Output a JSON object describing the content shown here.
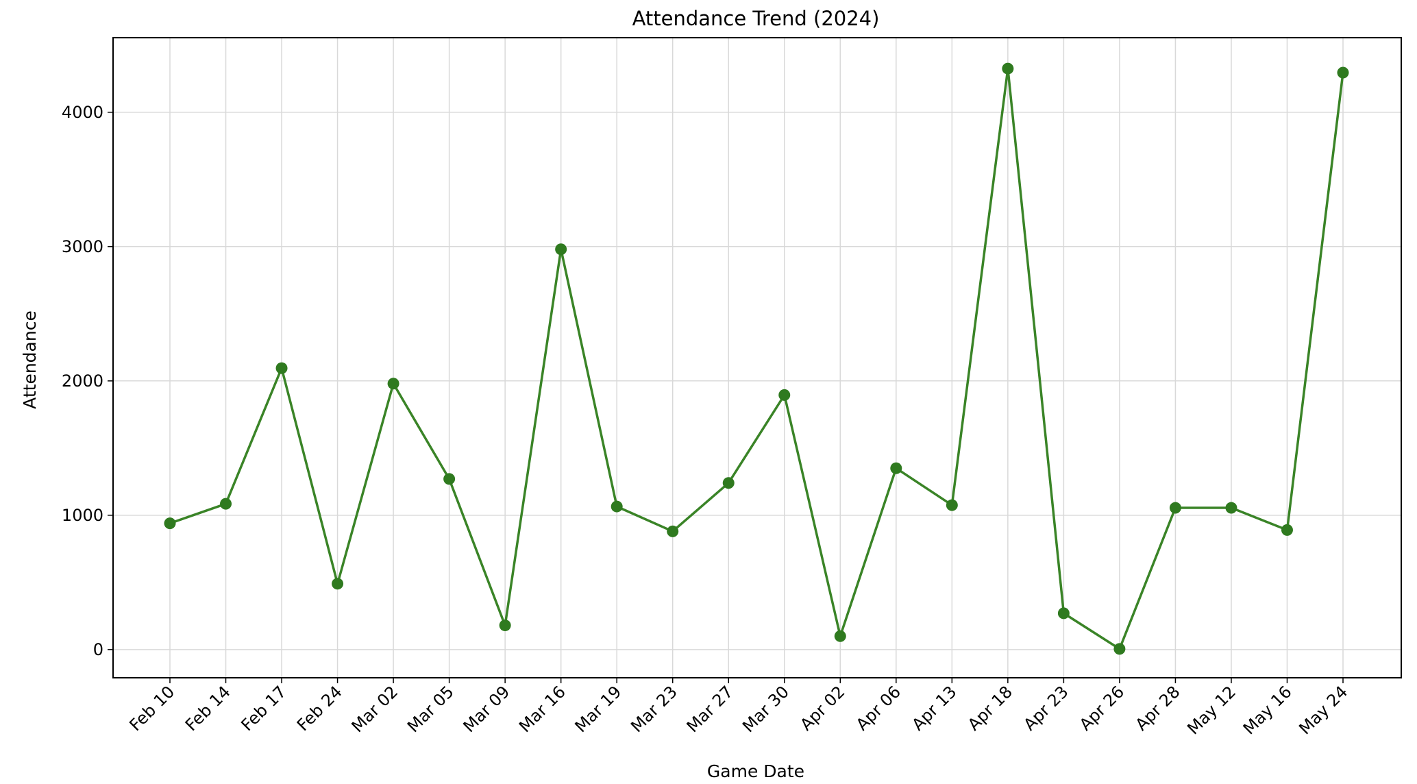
{
  "chart_data": {
    "type": "line",
    "title": "Attendance Trend (2024)",
    "xlabel": "Game Date",
    "ylabel": "Attendance",
    "categories": [
      "Feb 10",
      "Feb 14",
      "Feb 17",
      "Feb 24",
      "Mar 02",
      "Mar 05",
      "Mar 09",
      "Mar 16",
      "Mar 19",
      "Mar 23",
      "Mar 27",
      "Mar 30",
      "Apr 02",
      "Apr 06",
      "Apr 13",
      "Apr 18",
      "Apr 23",
      "Apr 26",
      "Apr 28",
      "May 12",
      "May 16",
      "May 24"
    ],
    "values": [
      940,
      1085,
      2095,
      490,
      1980,
      1270,
      180,
      2980,
      1065,
      880,
      1240,
      1895,
      100,
      1350,
      1075,
      4325,
      270,
      5,
      1055,
      1055,
      890,
      4295
    ],
    "ylim": [
      -210,
      4555
    ],
    "yticks": [
      0,
      1000,
      2000,
      3000,
      4000
    ],
    "grid": true,
    "colors": {
      "line": "#3a8427",
      "marker": "#2f7a1f",
      "grid": "#d9d9d9"
    }
  }
}
